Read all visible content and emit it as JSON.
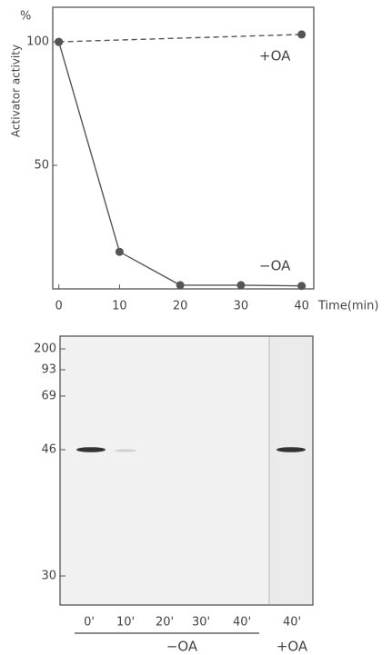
{
  "chart_data": {
    "type": "line",
    "y_unit": "%",
    "ylabel": "Activator activity",
    "xlabel": "Time(min)",
    "xlim": [
      -1,
      42
    ],
    "ylim": [
      0,
      114
    ],
    "xticks": [
      0,
      10,
      20,
      30,
      40
    ],
    "yticks": [
      50,
      100
    ],
    "series": [
      {
        "name": "+OA",
        "color": "#555555",
        "line_style": "dashed",
        "x": [
          0,
          40
        ],
        "values": [
          100,
          103
        ]
      },
      {
        "name": "−OA",
        "color": "#555555",
        "line_style": "solid",
        "x": [
          0,
          10,
          20,
          30,
          40
        ],
        "values": [
          100,
          15,
          1.5,
          1.5,
          1.2
        ]
      }
    ]
  },
  "gel": {
    "markers": [
      "200",
      "93",
      "69",
      "46",
      "30"
    ],
    "lanes": [
      "0'",
      "10'",
      "20'",
      "30'",
      "40'",
      "40'"
    ],
    "groups": [
      "−OA",
      "+OA"
    ]
  }
}
